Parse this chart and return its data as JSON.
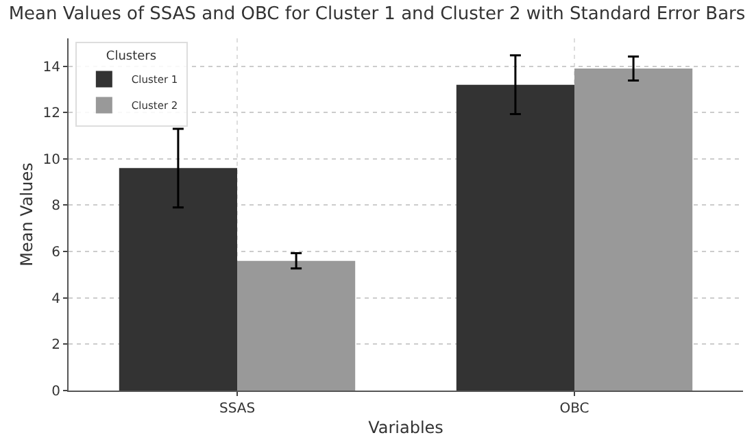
{
  "chart_data": {
    "type": "bar",
    "title": "Mean Values of SSAS and OBC for Cluster 1 and Cluster 2 with Standard Error Bars",
    "xlabel": "Variables",
    "ylabel": "Mean Values",
    "legend_title": "Clusters",
    "categories": [
      "SSAS",
      "OBC"
    ],
    "series": [
      {
        "name": "Cluster 1",
        "color": "#333333",
        "values": [
          9.6,
          13.2
        ],
        "errors": [
          1.7,
          1.27
        ]
      },
      {
        "name": "Cluster 2",
        "color": "#999999",
        "values": [
          5.6,
          13.9
        ],
        "errors": [
          0.33,
          0.52
        ]
      }
    ],
    "ylim": [
      0,
      15.2
    ],
    "yticks": [
      0,
      2,
      4,
      6,
      8,
      10,
      12,
      14
    ],
    "grid": true,
    "legend": "top left"
  }
}
